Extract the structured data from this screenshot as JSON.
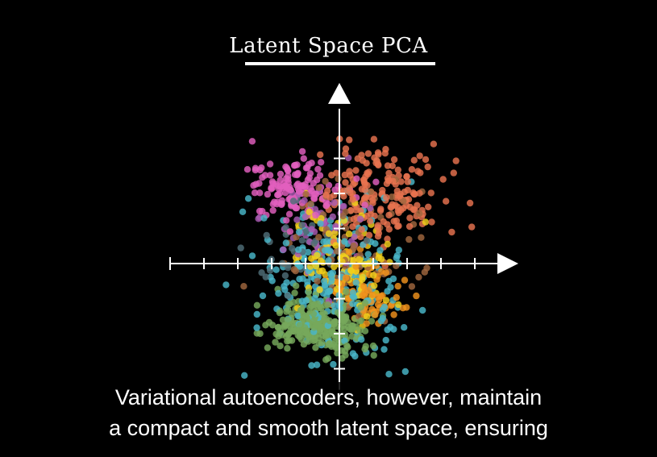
{
  "chart_data": {
    "type": "scatter",
    "title": "Latent Space PCA",
    "xlabel": "",
    "ylabel": "",
    "xlim": [
      -5,
      5
    ],
    "ylim": [
      -3.6,
      4.6
    ],
    "xticks": [
      -4,
      -3,
      -2,
      -1,
      1,
      2,
      3,
      4
    ],
    "yticks": [
      -3,
      -2,
      -1,
      1,
      2,
      3
    ],
    "grid": false,
    "legend": "none",
    "clusters": [
      {
        "color": "#e8734f",
        "center": [
          1.2,
          2.0
        ],
        "spread": [
          1.0,
          0.75
        ],
        "count": 190
      },
      {
        "color": "#e25fbe",
        "center": [
          -1.3,
          2.1
        ],
        "spread": [
          0.65,
          0.45
        ],
        "count": 140
      },
      {
        "color": "#49b7c9",
        "center": [
          -0.3,
          -0.6
        ],
        "spread": [
          1.05,
          1.1
        ],
        "count": 230
      },
      {
        "color": "#76a85b",
        "center": [
          -0.6,
          -1.75
        ],
        "spread": [
          0.75,
          0.38
        ],
        "count": 280
      },
      {
        "color": "#f2d11b",
        "center": [
          0.2,
          0.0
        ],
        "spread": [
          0.75,
          0.8
        ],
        "count": 120
      },
      {
        "color": "#a0663e",
        "center": [
          0.3,
          0.4
        ],
        "spread": [
          0.95,
          0.95
        ],
        "count": 110
      },
      {
        "color": "#f0931d",
        "center": [
          0.9,
          -0.8
        ],
        "spread": [
          0.6,
          0.55
        ],
        "count": 70
      },
      {
        "color": "#a85bb2",
        "center": [
          -0.4,
          0.9
        ],
        "spread": [
          0.8,
          0.7
        ],
        "count": 60
      },
      {
        "color": "#4f6e77",
        "center": [
          -1.1,
          0.4
        ],
        "spread": [
          0.7,
          0.7
        ],
        "count": 40
      }
    ]
  },
  "caption": {
    "line1": "Variational autoencoders, however, maintain",
    "line2": "a compact and smooth latent space, ensuring"
  }
}
